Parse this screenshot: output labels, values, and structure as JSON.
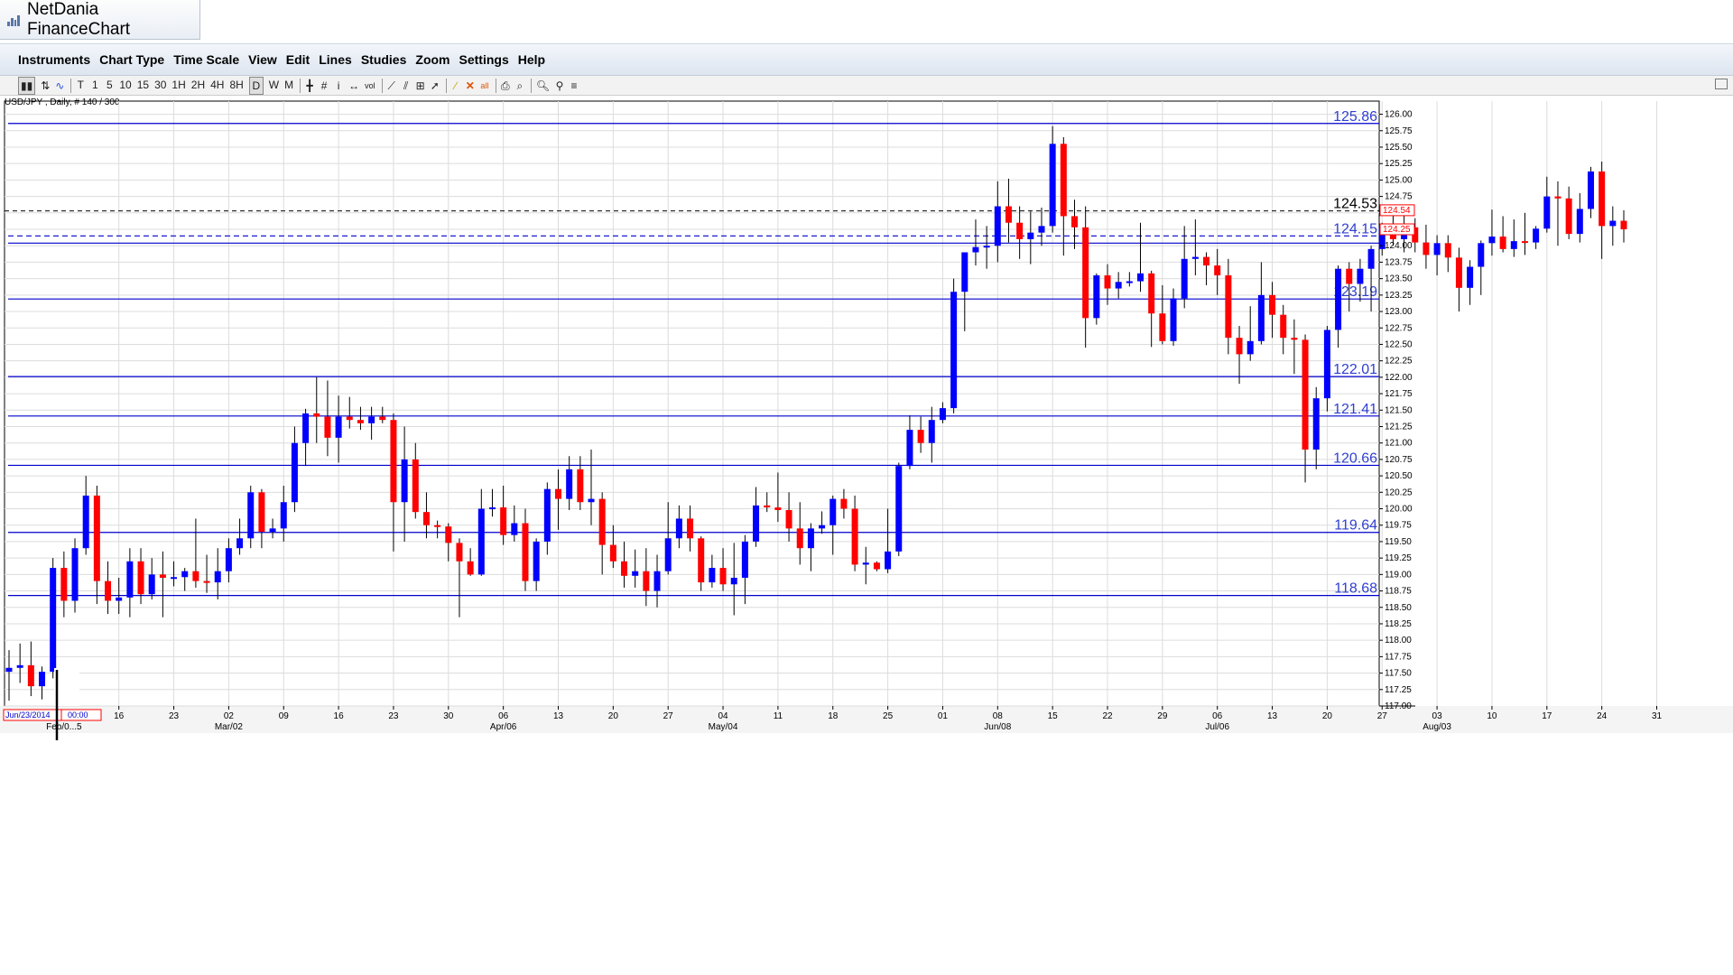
{
  "window": {
    "title": "NetDania FinanceChart"
  },
  "menu": [
    "Instruments",
    "Chart Type",
    "Time Scale",
    "View",
    "Edit",
    "Lines",
    "Studies",
    "Zoom",
    "Settings",
    "Help"
  ],
  "toolbar": {
    "timeframes": [
      "T",
      "1",
      "5",
      "10",
      "15",
      "30",
      "1H",
      "2H",
      "4H",
      "8H",
      "D",
      "W",
      "M"
    ],
    "active_timeframe": "D",
    "vol_label": "vol",
    "all_label": "all"
  },
  "colors": {
    "up": "#0000ff",
    "down": "#ff0000",
    "level": "#0000cc",
    "grid": "#dcdcdc",
    "current_tag": "#ff0000"
  },
  "chart_data": {
    "type": "candlestick",
    "title": "USD/JPY , Daily, # 140 / 300",
    "ylim": [
      117.0,
      126.2
    ],
    "y_ticks": [
      "117.00",
      "117.25",
      "117.50",
      "117.75",
      "118.00",
      "118.25",
      "118.50",
      "118.75",
      "119.00",
      "119.25",
      "119.50",
      "119.75",
      "120.00",
      "120.25",
      "120.50",
      "120.75",
      "121.00",
      "121.25",
      "121.50",
      "121.75",
      "122.00",
      "122.25",
      "122.50",
      "122.75",
      "123.00",
      "123.25",
      "123.50",
      "123.75",
      "124.00",
      "124.25",
      "124.50",
      "124.75",
      "125.00",
      "125.25",
      "125.50",
      "125.75",
      "126.00"
    ],
    "x_ticks": [
      {
        "label": "16",
        "day": 10
      },
      {
        "label": "23",
        "day": 15
      },
      {
        "label": "02",
        "day": 20
      },
      {
        "label": "09",
        "day": 25
      },
      {
        "label": "16",
        "day": 30
      },
      {
        "label": "23",
        "day": 35
      },
      {
        "label": "30",
        "day": 40
      },
      {
        "label": "06",
        "day": 45
      },
      {
        "label": "13",
        "day": 50
      },
      {
        "label": "20",
        "day": 55
      },
      {
        "label": "27",
        "day": 60
      },
      {
        "label": "04",
        "day": 65
      },
      {
        "label": "11",
        "day": 70
      },
      {
        "label": "18",
        "day": 75
      },
      {
        "label": "25",
        "day": 80
      },
      {
        "label": "01",
        "day": 85
      },
      {
        "label": "08",
        "day": 90
      },
      {
        "label": "15",
        "day": 95
      },
      {
        "label": "22",
        "day": 100
      },
      {
        "label": "29",
        "day": 105
      },
      {
        "label": "06",
        "day": 110
      },
      {
        "label": "13",
        "day": 115
      },
      {
        "label": "20",
        "day": 120
      },
      {
        "label": "27",
        "day": 125
      },
      {
        "label": "03",
        "day": 130
      },
      {
        "label": "10",
        "day": 135
      },
      {
        "label": "17",
        "day": 140
      },
      {
        "label": "24",
        "day": 145
      },
      {
        "label": "31",
        "day": 150
      }
    ],
    "month_labels": [
      {
        "label": "Feb/0...5",
        "day": 5
      },
      {
        "label": "Mar/02",
        "day": 20
      },
      {
        "label": "Apr/06",
        "day": 45
      },
      {
        "label": "May/04",
        "day": 65
      },
      {
        "label": "Jun/08",
        "day": 90
      },
      {
        "label": "Jul/06",
        "day": 110
      },
      {
        "label": "Aug/03",
        "day": 130
      }
    ],
    "left_stamps": [
      "Jun/23/2014",
      "00:00"
    ],
    "levels": [
      {
        "value": 125.86,
        "label": "125.86"
      },
      {
        "value": 124.15,
        "label": "124.15",
        "style": "dashed"
      },
      {
        "value": 123.19,
        "label": "123.19"
      },
      {
        "value": 122.01,
        "label": "122.01"
      },
      {
        "value": 121.41,
        "label": "121.41"
      },
      {
        "value": 120.66,
        "label": "120.66"
      },
      {
        "value": 119.64,
        "label": "119.64"
      },
      {
        "value": 118.68,
        "label": "118.68"
      }
    ],
    "dashed_lines": [
      {
        "value": 124.53,
        "label": "124.53"
      }
    ],
    "current_tags": [
      "124.54",
      "124.25"
    ],
    "candles": [
      [
        117.52,
        117.85,
        117.08,
        117.58
      ],
      [
        117.58,
        117.95,
        117.35,
        117.62
      ],
      [
        117.62,
        117.98,
        117.15,
        117.3
      ],
      [
        117.3,
        117.6,
        117.1,
        117.52
      ],
      [
        117.52,
        119.25,
        117.42,
        119.1
      ],
      [
        119.1,
        119.35,
        118.35,
        118.6
      ],
      [
        118.6,
        119.55,
        118.42,
        119.4
      ],
      [
        119.4,
        120.5,
        119.3,
        120.2
      ],
      [
        120.2,
        120.35,
        118.55,
        118.9
      ],
      [
        118.9,
        119.2,
        118.4,
        118.6
      ],
      [
        118.6,
        118.95,
        118.4,
        118.65
      ],
      [
        118.65,
        119.4,
        118.35,
        119.2
      ],
      [
        119.2,
        119.4,
        118.55,
        118.7
      ],
      [
        118.7,
        119.25,
        118.62,
        119.0
      ],
      [
        119.0,
        119.35,
        118.35,
        118.95
      ],
      [
        118.95,
        119.2,
        118.82,
        118.96
      ],
      [
        118.96,
        119.1,
        118.75,
        119.05
      ],
      [
        119.05,
        119.85,
        118.8,
        118.9
      ],
      [
        118.9,
        119.3,
        118.72,
        118.88
      ],
      [
        118.88,
        119.4,
        118.62,
        119.05
      ],
      [
        119.05,
        119.55,
        118.88,
        119.4
      ],
      [
        119.4,
        119.85,
        119.3,
        119.55
      ],
      [
        119.55,
        120.35,
        119.4,
        120.25
      ],
      [
        120.25,
        120.3,
        119.4,
        119.65
      ],
      [
        119.65,
        119.85,
        119.55,
        119.7
      ],
      [
        119.7,
        120.35,
        119.5,
        120.1
      ],
      [
        120.1,
        121.25,
        119.95,
        121.0
      ],
      [
        121.0,
        121.52,
        120.65,
        121.45
      ],
      [
        121.45,
        122.0,
        121.0,
        121.4
      ],
      [
        121.4,
        121.95,
        120.8,
        121.08
      ],
      [
        121.08,
        121.72,
        120.7,
        121.4
      ],
      [
        121.4,
        121.7,
        121.22,
        121.35
      ],
      [
        121.35,
        121.55,
        121.2,
        121.3
      ],
      [
        121.3,
        121.55,
        121.05,
        121.4
      ],
      [
        121.4,
        121.55,
        121.3,
        121.35
      ],
      [
        121.35,
        121.45,
        119.35,
        120.1
      ],
      [
        120.1,
        121.25,
        119.5,
        120.75
      ],
      [
        120.75,
        121.0,
        119.85,
        119.95
      ],
      [
        119.95,
        120.25,
        119.55,
        119.75
      ],
      [
        119.75,
        119.82,
        119.55,
        119.73
      ],
      [
        119.73,
        119.78,
        119.2,
        119.48
      ],
      [
        119.48,
        119.55,
        118.35,
        119.2
      ],
      [
        119.2,
        119.4,
        118.98,
        119.0
      ],
      [
        119.0,
        120.3,
        118.98,
        120.0
      ],
      [
        120.0,
        120.3,
        119.88,
        120.02
      ],
      [
        120.02,
        120.35,
        119.45,
        119.6
      ],
      [
        119.6,
        120.05,
        119.5,
        119.78
      ],
      [
        119.78,
        120.0,
        118.75,
        118.9
      ],
      [
        118.9,
        119.55,
        118.75,
        119.5
      ],
      [
        119.5,
        120.4,
        119.3,
        120.3
      ],
      [
        120.3,
        120.6,
        119.68,
        120.15
      ],
      [
        120.15,
        120.8,
        119.98,
        120.6
      ],
      [
        120.6,
        120.8,
        119.98,
        120.1
      ],
      [
        120.1,
        120.9,
        119.75,
        120.15
      ],
      [
        120.15,
        120.25,
        119.0,
        119.45
      ],
      [
        119.45,
        119.75,
        119.1,
        119.2
      ],
      [
        119.2,
        119.5,
        118.8,
        118.98
      ],
      [
        118.98,
        119.38,
        118.8,
        119.05
      ],
      [
        119.05,
        119.4,
        118.52,
        118.75
      ],
      [
        118.75,
        119.3,
        118.5,
        119.05
      ],
      [
        119.05,
        120.1,
        119.0,
        119.55
      ],
      [
        119.55,
        120.05,
        119.4,
        119.85
      ],
      [
        119.85,
        120.05,
        119.35,
        119.55
      ],
      [
        119.55,
        119.58,
        118.75,
        118.88
      ],
      [
        118.88,
        119.3,
        118.8,
        119.1
      ],
      [
        119.1,
        119.4,
        118.75,
        118.85
      ],
      [
        118.85,
        119.48,
        118.38,
        118.95
      ],
      [
        118.95,
        119.6,
        118.55,
        119.5
      ],
      [
        119.5,
        120.33,
        119.42,
        120.05
      ],
      [
        120.05,
        120.25,
        119.95,
        120.02
      ],
      [
        120.02,
        120.55,
        119.8,
        119.98
      ],
      [
        119.98,
        120.25,
        119.5,
        119.7
      ],
      [
        119.7,
        120.1,
        119.15,
        119.4
      ],
      [
        119.4,
        119.78,
        119.05,
        119.7
      ],
      [
        119.7,
        119.96,
        119.62,
        119.75
      ],
      [
        119.75,
        120.2,
        119.3,
        120.15
      ],
      [
        120.15,
        120.3,
        119.85,
        120.0
      ],
      [
        120.0,
        120.2,
        119.05,
        119.15
      ],
      [
        119.15,
        119.42,
        118.85,
        119.18
      ],
      [
        119.18,
        119.2,
        119.05,
        119.08
      ],
      [
        119.08,
        120.0,
        119.02,
        119.35
      ],
      [
        119.35,
        120.7,
        119.28,
        120.65
      ],
      [
        120.65,
        121.42,
        120.6,
        121.2
      ],
      [
        121.2,
        121.4,
        120.85,
        121.0
      ],
      [
        121.0,
        121.55,
        120.7,
        121.35
      ],
      [
        121.35,
        121.62,
        121.3,
        121.53
      ],
      [
        121.53,
        123.5,
        121.45,
        123.3
      ],
      [
        123.3,
        123.9,
        122.7,
        123.9
      ],
      [
        123.9,
        124.4,
        123.7,
        123.98
      ],
      [
        123.98,
        124.3,
        123.65,
        124.0
      ],
      [
        124.0,
        124.98,
        123.75,
        124.6
      ],
      [
        124.6,
        125.02,
        124.05,
        124.35
      ],
      [
        124.35,
        124.6,
        123.8,
        124.1
      ],
      [
        124.1,
        124.52,
        123.72,
        124.2
      ],
      [
        124.2,
        124.58,
        124.0,
        124.3
      ],
      [
        124.3,
        125.82,
        124.2,
        125.55
      ],
      [
        125.55,
        125.65,
        123.85,
        124.45
      ],
      [
        124.45,
        124.7,
        123.95,
        124.28
      ],
      [
        124.28,
        124.6,
        122.45,
        122.9
      ],
      [
        122.9,
        123.58,
        122.8,
        123.55
      ],
      [
        123.55,
        123.72,
        123.1,
        123.35
      ],
      [
        123.35,
        123.6,
        123.2,
        123.45
      ],
      [
        123.45,
        123.6,
        123.38,
        123.46
      ],
      [
        123.46,
        124.35,
        123.3,
        123.58
      ],
      [
        123.58,
        123.62,
        122.46,
        122.97
      ],
      [
        122.97,
        123.4,
        122.5,
        122.55
      ],
      [
        122.55,
        123.35,
        122.48,
        123.2
      ],
      [
        123.2,
        124.3,
        123.05,
        123.8
      ],
      [
        123.8,
        124.4,
        123.55,
        123.83
      ],
      [
        123.83,
        123.9,
        123.4,
        123.7
      ],
      [
        123.7,
        123.95,
        123.25,
        123.55
      ],
      [
        123.55,
        123.8,
        122.35,
        122.6
      ],
      [
        122.6,
        122.78,
        121.9,
        122.35
      ],
      [
        122.35,
        123.08,
        122.25,
        122.55
      ],
      [
        122.55,
        123.75,
        122.5,
        123.25
      ],
      [
        123.25,
        123.45,
        122.6,
        122.95
      ],
      [
        122.95,
        123.1,
        122.35,
        122.6
      ],
      [
        122.6,
        122.88,
        122.05,
        122.57
      ],
      [
        122.57,
        122.65,
        120.4,
        120.9
      ],
      [
        120.9,
        121.85,
        120.6,
        121.68
      ],
      [
        121.68,
        122.78,
        121.48,
        122.72
      ],
      [
        122.72,
        123.7,
        122.45,
        123.65
      ],
      [
        123.65,
        123.75,
        123.0,
        123.42
      ],
      [
        123.42,
        123.8,
        123.15,
        123.65
      ],
      [
        123.65,
        124.0,
        123.0,
        123.95
      ],
      [
        123.95,
        124.35,
        123.85,
        124.3
      ],
      [
        124.3,
        124.5,
        124.0,
        124.1
      ],
      [
        124.1,
        124.5,
        123.9,
        124.28
      ],
      [
        124.28,
        124.42,
        123.9,
        124.05
      ],
      [
        124.05,
        124.32,
        123.65,
        123.86
      ],
      [
        123.86,
        124.16,
        123.55,
        124.04
      ],
      [
        124.04,
        124.16,
        123.6,
        123.82
      ],
      [
        123.82,
        123.97,
        123.0,
        123.36
      ],
      [
        123.36,
        123.78,
        123.1,
        123.68
      ],
      [
        123.68,
        124.08,
        123.25,
        124.04
      ],
      [
        124.04,
        124.55,
        123.85,
        124.14
      ],
      [
        124.14,
        124.45,
        123.9,
        123.95
      ],
      [
        123.95,
        124.4,
        123.83,
        124.07
      ],
      [
        124.07,
        124.5,
        123.86,
        124.05
      ],
      [
        124.05,
        124.3,
        123.95,
        124.26
      ],
      [
        124.26,
        125.05,
        124.2,
        124.75
      ],
      [
        124.75,
        124.98,
        124.0,
        124.72
      ],
      [
        124.72,
        124.9,
        124.1,
        124.18
      ],
      [
        124.18,
        124.8,
        124.05,
        124.56
      ],
      [
        124.56,
        125.2,
        124.42,
        125.13
      ],
      [
        125.13,
        125.28,
        123.8,
        124.3
      ],
      [
        124.3,
        124.6,
        124.0,
        124.38
      ],
      [
        124.38,
        124.54,
        124.05,
        124.25
      ]
    ]
  }
}
